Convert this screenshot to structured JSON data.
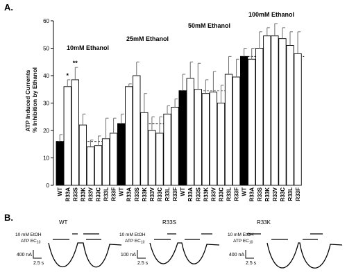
{
  "panels": {
    "a_label": "A.",
    "b_label": "B."
  },
  "chart_data": {
    "type": "bar",
    "title": "",
    "ylabel": "ATP Induced Currents\n% Inhibition by Ethanol",
    "ylabel_lines": [
      "ATP Induced Currents",
      "% Inhibition by Ethanol"
    ],
    "ylim": [
      0,
      60
    ],
    "yticks": [
      0,
      10,
      20,
      30,
      40,
      50,
      60
    ],
    "grid": false,
    "legend": "none",
    "groups": [
      {
        "label": "10mM Ethanol",
        "categories": [
          "WT",
          "R33A",
          "R33S",
          "R33K",
          "R33V",
          "R33C",
          "R33L",
          "R33F"
        ],
        "values": [
          16,
          36,
          38.5,
          22,
          14,
          14.5,
          17,
          19
        ],
        "errors": [
          2.5,
          2.5,
          4.5,
          4,
          2.5,
          3.5,
          7.5,
          5.5
        ],
        "significance": [
          "",
          "*",
          "**",
          "",
          "",
          "",
          "",
          ""
        ],
        "wt_reference": 16
      },
      {
        "label": "25mM Ethanol",
        "categories": [
          "WT",
          "R33A",
          "R33S",
          "R33K",
          "R33V",
          "R33C",
          "R33L",
          "R33F"
        ],
        "values": [
          22.5,
          36,
          40,
          26.5,
          20,
          19,
          26,
          28.5
        ],
        "errors": [
          3.5,
          1,
          5,
          7,
          5,
          6,
          3,
          3
        ],
        "significance": [
          "",
          "",
          "",
          "",
          "",
          "",
          "",
          ""
        ],
        "wt_reference": 22.5
      },
      {
        "label": "50mM Ethanol",
        "categories": [
          "WT",
          "R33A",
          "R33S",
          "R33K",
          "R33V",
          "R33C",
          "R33L",
          "R33F"
        ],
        "values": [
          34.5,
          39,
          35,
          33.5,
          34,
          30,
          40.5,
          39.5
        ],
        "errors": [
          6,
          6,
          9.5,
          5,
          7.5,
          6.5,
          6.5,
          6.5
        ],
        "significance": [
          "",
          "",
          "",
          "",
          "",
          "",
          "",
          ""
        ],
        "wt_reference": 34.5
      },
      {
        "label": "100mM Ethanol",
        "categories": [
          "WT",
          "R33A",
          "R33S",
          "R33K",
          "R33V",
          "R33C",
          "R33L",
          "R33F"
        ],
        "values": [
          47,
          46,
          50,
          54.5,
          54.5,
          53.5,
          51,
          48
        ],
        "errors": [
          3,
          4,
          6,
          3,
          4.5,
          4,
          5,
          8
        ],
        "significance": [
          "",
          "",
          "",
          "",
          "",
          "",
          "",
          ""
        ],
        "wt_reference": 47
      }
    ]
  },
  "traces": [
    {
      "title": "WT",
      "etoh_label": "10 mM EtOH",
      "atp_label": "ATP EC",
      "atp_sub": "10",
      "amp_label": "400 nA",
      "time_label": "2.5 s"
    },
    {
      "title": "R33S",
      "etoh_label": "10 mM EtOH",
      "atp_label": "ATP EC",
      "atp_sub": "10",
      "amp_label": "100 nA",
      "time_label": "2.5 s"
    },
    {
      "title": "R33K",
      "etoh_label": "10 mM EtOH",
      "atp_label": "ATP EC",
      "atp_sub": "10",
      "amp_label": "400 nA",
      "time_label": "2.5 s"
    }
  ],
  "colors": {
    "wt_bar": "#000000",
    "mutant_bar": "#ffffff",
    "stroke": "#000000",
    "error_bar": "#6e6e6e",
    "reference_line_light": "#7a7a7a"
  }
}
